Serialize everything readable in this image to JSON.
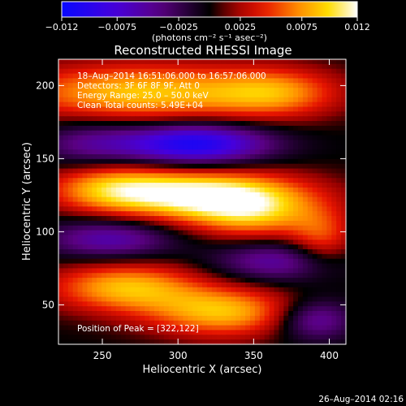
{
  "chart_data": {
    "type": "heatmap",
    "title": "Reconstructed RHESSI Image",
    "xlabel": "Heliocentric X (arcsec)",
    "ylabel": "Heliocentric Y (arcsec)",
    "xlim": [
      221,
      411
    ],
    "ylim": [
      23,
      218
    ],
    "x_ticks": [
      250,
      300,
      350,
      400
    ],
    "y_ticks": [
      50,
      100,
      150,
      200
    ],
    "colormap": "blue-purple-black-red-orange-yellow-white",
    "colorbar": {
      "range": [
        -0.012,
        0.012
      ],
      "ticks": [
        "−0.012",
        "−0.0075",
        "−0.0025",
        "0.0025",
        "0.0075",
        "0.012"
      ],
      "tick_values": [
        -0.012,
        -0.0075,
        -0.0025,
        0.0025,
        0.0075,
        0.012
      ],
      "unit_label": "(photons cm⁻² s⁻¹ asec⁻²)"
    },
    "annotations": [
      "18–Aug–2014 16:51:06.000 to 16:57:06.000",
      "Detectors: 3F 6F 8F 9F, Att 0",
      "Energy Range: 25.0 – 50.0 keV",
      "Clean     Total counts: 5.49E+04"
    ],
    "peak_label": "Position of Peak = [322,122]",
    "peak": {
      "x": 322,
      "y": 122
    },
    "sources": [
      {
        "x": 275,
        "y": 195,
        "value": 0.009,
        "sx": 60,
        "sy": 14
      },
      {
        "x": 320,
        "y": 125,
        "value": 0.012,
        "sx": 45,
        "sy": 12
      },
      {
        "x": 255,
        "y": 130,
        "value": 0.007,
        "sx": 30,
        "sy": 12
      },
      {
        "x": 365,
        "y": 195,
        "value": 0.006,
        "sx": 30,
        "sy": 12
      },
      {
        "x": 350,
        "y": 110,
        "value": 0.006,
        "sx": 30,
        "sy": 12
      },
      {
        "x": 395,
        "y": 95,
        "value": 0.005,
        "sx": 15,
        "sy": 14
      },
      {
        "x": 265,
        "y": 62,
        "value": 0.0085,
        "sx": 35,
        "sy": 12
      },
      {
        "x": 330,
        "y": 45,
        "value": 0.0085,
        "sx": 35,
        "sy": 12
      },
      {
        "x": 310,
        "y": 160,
        "value": -0.011,
        "sx": 35,
        "sy": 10
      },
      {
        "x": 255,
        "y": 95,
        "value": -0.006,
        "sx": 30,
        "sy": 10
      },
      {
        "x": 365,
        "y": 80,
        "value": -0.0055,
        "sx": 30,
        "sy": 10
      },
      {
        "x": 240,
        "y": 160,
        "value": -0.004,
        "sx": 25,
        "sy": 12
      },
      {
        "x": 390,
        "y": 40,
        "value": -0.006,
        "sx": 18,
        "sy": 10
      }
    ]
  },
  "footer": {
    "timestamp": "26–Aug–2014 02:16"
  }
}
